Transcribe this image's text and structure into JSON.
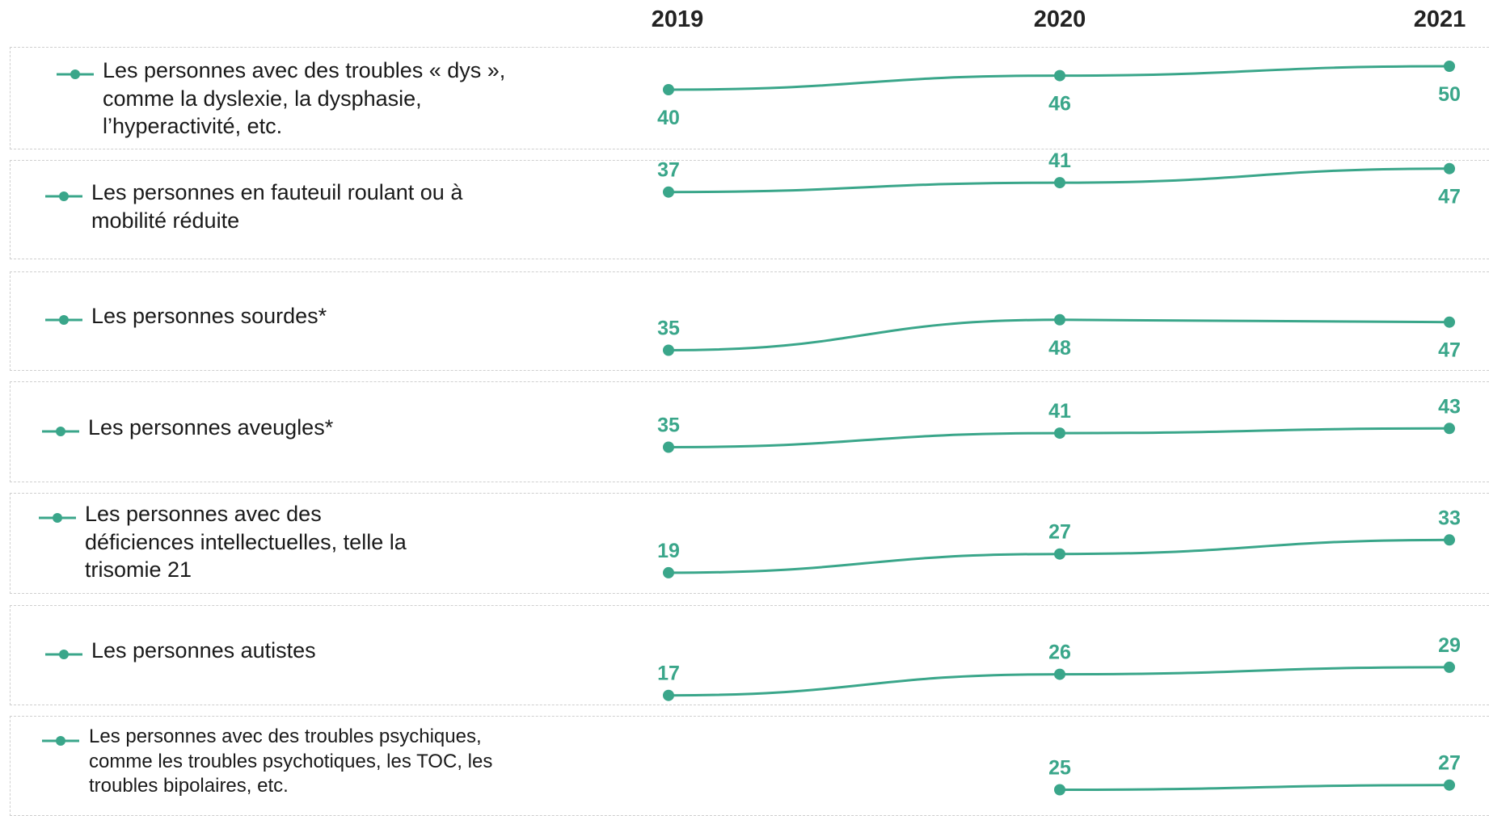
{
  "chart_data": {
    "type": "line",
    "x": [
      "2019",
      "2020",
      "2021"
    ],
    "line_color": "#3aa68a",
    "series": [
      {
        "name": "Les personnes avec des troubles « dys », comme la dyslexie, la dysphasie, l’hyperactivité, etc.",
        "label_lines": [
          "Les personnes avec des troubles « dys »,",
          "comme la dyslexie, la dysphasie,",
          "l’hyperactivité, etc."
        ],
        "values": [
          40,
          46,
          50
        ]
      },
      {
        "name": "Les personnes en fauteuil roulant ou à mobilité réduite",
        "label_lines": [
          "Les personnes en fauteuil roulant ou à",
          "mobilité réduite"
        ],
        "values": [
          37,
          41,
          47
        ]
      },
      {
        "name": "Les personnes sourdes*",
        "label_lines": [
          "Les personnes sourdes*"
        ],
        "values": [
          35,
          48,
          47
        ]
      },
      {
        "name": "Les personnes aveugles*",
        "label_lines": [
          "Les personnes aveugles*"
        ],
        "values": [
          35,
          41,
          43
        ]
      },
      {
        "name": "Les personnes avec des déficiences intellectuelles, telle la trisomie 21",
        "label_lines": [
          "Les personnes avec des",
          "déficiences intellectuelles, telle la",
          "trisomie 21"
        ],
        "values": [
          19,
          27,
          33
        ]
      },
      {
        "name": "Les personnes autistes",
        "label_lines": [
          "Les personnes autistes"
        ],
        "values": [
          17,
          26,
          29
        ]
      },
      {
        "name": "Les personnes avec des troubles psychiques, comme les troubles psychotiques, les TOC, les troubles bipolaires, etc.",
        "label_lines": [
          "Les personnes avec des troubles psychiques,",
          "comme les troubles psychotiques, les TOC, les",
          "troubles bipolaires, etc."
        ],
        "values": [
          null,
          25,
          27
        ]
      }
    ]
  }
}
